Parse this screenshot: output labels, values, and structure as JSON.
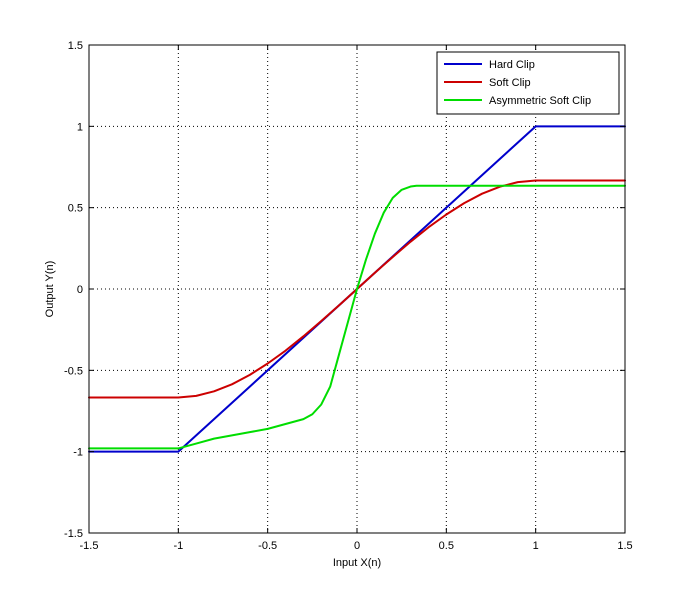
{
  "chart_data": {
    "type": "line",
    "title": "",
    "xlabel": "Input X(n)",
    "ylabel": "Output Y(n)",
    "xlim": [
      -1.5,
      1.5
    ],
    "ylim": [
      -1.5,
      1.5
    ],
    "xticks": [
      -1.5,
      -1,
      -0.5,
      0,
      0.5,
      1,
      1.5
    ],
    "yticks": [
      -1.5,
      -1,
      -0.5,
      0,
      0.5,
      1,
      1.5
    ],
    "xtick_labels": [
      "-1.5",
      "-1",
      "-0.5",
      "0",
      "0.5",
      "1",
      "1.5"
    ],
    "ytick_labels": [
      "-1.5",
      "-1",
      "-0.5",
      "0",
      "0.5",
      "1",
      "1.5"
    ],
    "grid": true,
    "legend_position": "top-right",
    "series": [
      {
        "name": "Hard Clip",
        "color": "#0000cc",
        "x": [
          -1.5,
          -1.0,
          1.0,
          1.5
        ],
        "y": [
          -1.0,
          -1.0,
          1.0,
          1.0
        ]
      },
      {
        "name": "Soft Clip",
        "color": "#cc0000",
        "x": [
          -1.5,
          -1.0,
          -0.9,
          -0.8,
          -0.7,
          -0.6,
          -0.5,
          -0.4,
          -0.3,
          -0.2,
          -0.1,
          0.0,
          0.1,
          0.2,
          0.3,
          0.4,
          0.5,
          0.6,
          0.7,
          0.8,
          0.9,
          1.0,
          1.5
        ],
        "y": [
          -0.667,
          -0.667,
          -0.657,
          -0.629,
          -0.586,
          -0.528,
          -0.458,
          -0.379,
          -0.291,
          -0.197,
          -0.1,
          0.0,
          0.1,
          0.197,
          0.291,
          0.379,
          0.458,
          0.528,
          0.586,
          0.629,
          0.657,
          0.667,
          0.667
        ]
      },
      {
        "name": "Asymmetric Soft Clip",
        "color": "#00dd00",
        "x": [
          -1.5,
          -1.0,
          -0.9,
          -0.8,
          -0.7,
          -0.6,
          -0.5,
          -0.4,
          -0.3,
          -0.25,
          -0.2,
          -0.15,
          -0.1,
          -0.05,
          0.0,
          0.05,
          0.1,
          0.15,
          0.2,
          0.25,
          0.3,
          0.333,
          0.5,
          1.0,
          1.5
        ],
        "y": [
          -0.98,
          -0.98,
          -0.95,
          -0.92,
          -0.9,
          -0.88,
          -0.86,
          -0.83,
          -0.8,
          -0.77,
          -0.71,
          -0.6,
          -0.4,
          -0.2,
          0.0,
          0.18,
          0.34,
          0.47,
          0.56,
          0.61,
          0.63,
          0.635,
          0.635,
          0.635,
          0.635
        ]
      }
    ]
  }
}
